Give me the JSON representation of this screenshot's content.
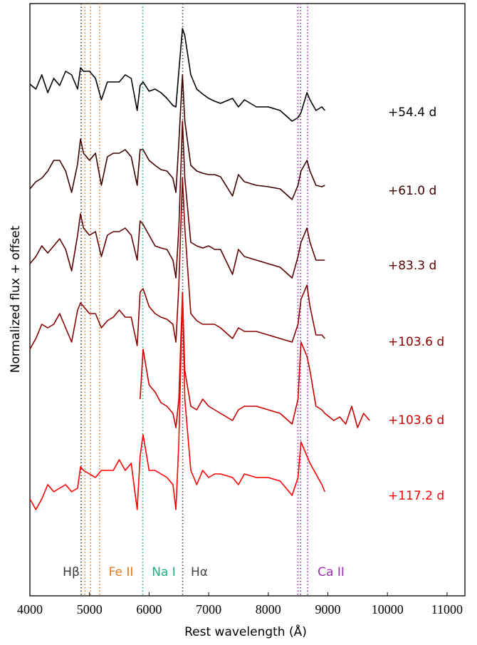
{
  "chart_data": {
    "type": "line",
    "xlabel": "Rest wavelength (Å)",
    "ylabel": "Normalized flux + offset",
    "xlim": [
      4000,
      11300
    ],
    "ylim": [
      0,
      8.31
    ],
    "xticks": [
      4000,
      5000,
      6000,
      7000,
      8000,
      9000,
      10000,
      11000
    ],
    "x": [
      4000,
      4100,
      4200,
      4300,
      4400,
      4500,
      4600,
      4700,
      4800,
      4850,
      4900,
      5000,
      5100,
      5200,
      5300,
      5400,
      5500,
      5600,
      5700,
      5800,
      5850,
      5900,
      6000,
      6100,
      6200,
      6300,
      6400,
      6450,
      6500,
      6560,
      6600,
      6700,
      6800,
      6900,
      7000,
      7100,
      7200,
      7400,
      7500,
      7600,
      7800,
      8000,
      8200,
      8400,
      8500,
      8550,
      8650,
      8700,
      8800,
      8900,
      8950,
      9100,
      9200,
      9300,
      9400,
      9500,
      9600,
      9700
    ],
    "series": [
      {
        "name": "+54.4 d",
        "color": "#000000",
        "values": [
          7.18,
          7.11,
          7.31,
          7.06,
          7.26,
          7.16,
          7.36,
          7.31,
          7.11,
          7.41,
          7.36,
          7.36,
          7.26,
          6.96,
          7.21,
          7.21,
          7.21,
          7.31,
          7.26,
          6.81,
          7.16,
          7.21,
          7.08,
          7.11,
          7.06,
          6.98,
          6.88,
          6.86,
          7.36,
          7.96,
          7.86,
          7.31,
          7.11,
          7.04,
          6.98,
          6.94,
          6.91,
          6.98,
          6.86,
          6.96,
          6.86,
          6.86,
          6.81,
          6.66,
          6.71,
          6.78,
          7.06,
          6.96,
          6.81,
          6.86,
          6.81,
          null,
          null,
          null,
          null,
          null,
          null,
          null
        ]
      },
      {
        "name": "+61.0 d",
        "color": "#3d0000",
        "values": [
          5.71,
          5.81,
          5.86,
          5.96,
          6.11,
          6.11,
          5.96,
          5.66,
          6.06,
          6.41,
          6.21,
          6.11,
          6.21,
          5.76,
          6.16,
          6.21,
          6.21,
          6.26,
          6.16,
          5.76,
          6.26,
          6.26,
          6.11,
          6.04,
          5.98,
          5.96,
          5.86,
          5.66,
          6.36,
          7.31,
          6.66,
          6.04,
          5.96,
          5.93,
          5.91,
          5.91,
          5.88,
          5.61,
          5.91,
          5.81,
          5.76,
          5.74,
          5.71,
          5.56,
          5.76,
          5.96,
          6.11,
          5.96,
          5.76,
          5.74,
          5.76,
          null,
          null,
          null,
          null,
          null,
          null,
          null
        ]
      },
      {
        "name": "+83.3 d",
        "color": "#5c0000",
        "values": [
          4.66,
          4.76,
          4.91,
          4.81,
          4.91,
          5.01,
          4.86,
          4.56,
          5.06,
          5.36,
          5.16,
          5.06,
          5.11,
          4.76,
          5.06,
          5.11,
          5.11,
          5.16,
          5.06,
          4.71,
          5.26,
          5.21,
          5.06,
          4.91,
          4.88,
          4.86,
          4.71,
          4.46,
          5.16,
          6.66,
          5.86,
          4.96,
          4.91,
          4.88,
          4.91,
          4.86,
          4.86,
          4.51,
          4.86,
          4.76,
          4.71,
          4.66,
          4.61,
          4.46,
          4.76,
          4.96,
          5.16,
          4.96,
          4.71,
          4.71,
          4.71,
          null,
          null,
          null,
          null,
          null,
          null,
          null
        ]
      },
      {
        "name": "+103.6 d",
        "color": "#8b0000",
        "values": [
          3.46,
          3.61,
          3.81,
          3.76,
          3.81,
          3.96,
          3.76,
          3.56,
          4.01,
          4.11,
          4.06,
          3.96,
          3.96,
          3.76,
          3.86,
          3.91,
          4.01,
          3.91,
          3.91,
          3.51,
          4.26,
          4.31,
          4.06,
          3.96,
          3.91,
          3.88,
          3.81,
          3.56,
          4.36,
          5.86,
          5.16,
          3.96,
          3.86,
          3.81,
          3.81,
          3.81,
          3.76,
          3.61,
          3.76,
          3.71,
          3.71,
          3.66,
          3.61,
          3.56,
          3.81,
          4.16,
          4.36,
          4.06,
          3.66,
          3.66,
          3.61,
          null,
          null,
          null,
          null,
          null,
          null,
          null
        ]
      },
      {
        "name": "+103.6 d",
        "color": "#c80000",
        "values": [
          null,
          null,
          null,
          null,
          null,
          null,
          null,
          null,
          null,
          null,
          null,
          null,
          null,
          null,
          null,
          null,
          null,
          null,
          null,
          null,
          2.76,
          3.46,
          2.96,
          2.86,
          2.71,
          2.66,
          2.56,
          2.36,
          2.76,
          4.26,
          3.16,
          2.66,
          2.61,
          2.76,
          2.66,
          2.61,
          2.56,
          2.46,
          2.61,
          2.66,
          2.66,
          2.61,
          2.56,
          2.41,
          2.76,
          3.56,
          3.36,
          3.16,
          2.66,
          2.61,
          2.56,
          2.46,
          2.51,
          2.41,
          2.66,
          2.36,
          2.56,
          2.46
        ]
      },
      {
        "name": "+117.2 d",
        "color": "#ff0000",
        "values": [
          1.36,
          1.21,
          1.36,
          1.56,
          1.46,
          1.51,
          1.56,
          1.46,
          1.51,
          1.81,
          1.76,
          1.71,
          1.66,
          1.76,
          1.76,
          1.76,
          1.91,
          1.76,
          1.86,
          1.21,
          1.96,
          2.26,
          1.76,
          1.76,
          1.71,
          1.66,
          1.56,
          1.21,
          2.16,
          4.21,
          2.76,
          1.76,
          1.56,
          1.76,
          1.66,
          1.71,
          1.71,
          1.66,
          1.56,
          1.71,
          1.66,
          1.66,
          1.61,
          1.41,
          1.66,
          2.16,
          1.96,
          1.86,
          1.71,
          1.56,
          1.46,
          null,
          null,
          null,
          null,
          null,
          null,
          null
        ]
      }
    ],
    "markers": [
      {
        "label": "Hβ",
        "color": "#333333",
        "x": [
          4861
        ]
      },
      {
        "label": "Fe II",
        "color": "#e07b20",
        "x": [
          4924,
          5018,
          5169
        ]
      },
      {
        "label": "Na I",
        "color": "#1aaf80",
        "x": [
          5893
        ]
      },
      {
        "label": "Hα",
        "color": "#444444",
        "x": [
          6563
        ]
      },
      {
        "label": "Ca II",
        "color": "#9b30b0",
        "x": [
          8498,
          8542,
          8662
        ]
      }
    ]
  }
}
